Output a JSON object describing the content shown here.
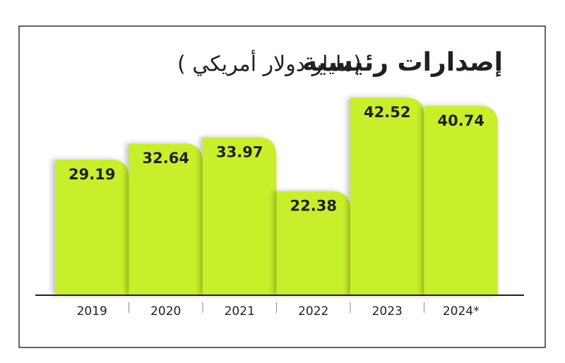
{
  "chart_data": {
    "type": "bar",
    "title": "إصدارات رئيسية",
    "subtitle": "( مليار دولار أمريكي)",
    "categories": [
      "2019",
      "2020",
      "2021",
      "2022",
      "2023",
      "2024*"
    ],
    "values": [
      29.19,
      32.64,
      33.97,
      22.38,
      42.52,
      40.74
    ],
    "color": "#c8f02c",
    "ylim": [
      0,
      50
    ]
  }
}
